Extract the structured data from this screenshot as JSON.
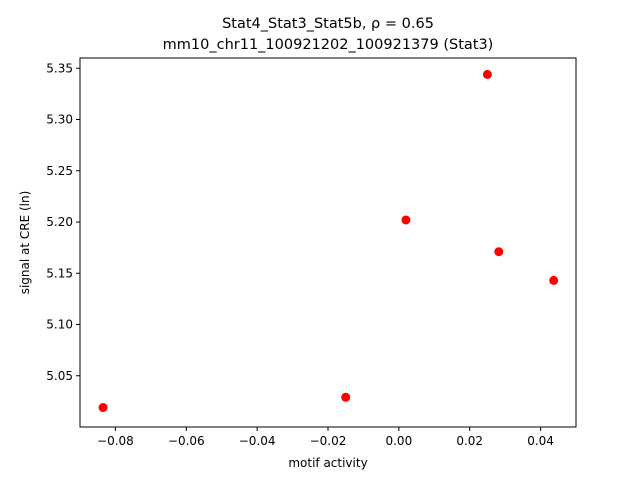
{
  "chart_data": {
    "type": "scatter",
    "title_line1": "Stat4_Stat3_Stat5b, ρ = 0.65",
    "title_line2": "mm10_chr11_100921202_100921379 (Stat3)",
    "xlabel": "motif activity",
    "ylabel": "signal at CRE (ln)",
    "xlim": [
      -0.09,
      0.05
    ],
    "ylim": [
      5.0,
      5.36
    ],
    "xticks": [
      -0.08,
      -0.06,
      -0.04,
      -0.02,
      0.0,
      0.02,
      0.04
    ],
    "xtick_labels": [
      "−0.08",
      "−0.06",
      "−0.04",
      "−0.02",
      "0.00",
      "0.02",
      "0.04"
    ],
    "yticks": [
      5.05,
      5.1,
      5.15,
      5.2,
      5.25,
      5.3,
      5.35
    ],
    "ytick_labels": [
      "5.05",
      "5.10",
      "5.15",
      "5.20",
      "5.25",
      "5.30",
      "5.35"
    ],
    "grid": false,
    "series": [
      {
        "color": "#ff0000",
        "points": [
          {
            "x": -0.0835,
            "y": 5.019
          },
          {
            "x": -0.015,
            "y": 5.029
          },
          {
            "x": 0.002,
            "y": 5.202
          },
          {
            "x": 0.025,
            "y": 5.344
          },
          {
            "x": 0.0282,
            "y": 5.171
          },
          {
            "x": 0.0437,
            "y": 5.143
          }
        ]
      }
    ]
  }
}
